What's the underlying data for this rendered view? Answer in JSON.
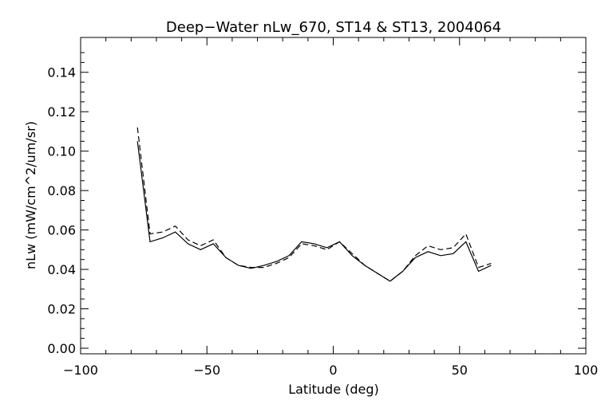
{
  "chart_data": {
    "type": "line",
    "title": "Deep−Water nLw_670, ST14 & ST13, 2004064",
    "xlabel": "Latitude (deg)",
    "ylabel": "nLw (mW/cm^2/um/sr)",
    "xlim": [
      -100,
      100
    ],
    "ylim": [
      0.0,
      0.15
    ],
    "xticks": [
      -100,
      -50,
      0,
      50,
      100
    ],
    "xtick_labels": [
      "−100",
      "−50",
      "0",
      "50",
      "100"
    ],
    "yticks": [
      0.0,
      0.02,
      0.04,
      0.06,
      0.08,
      0.1,
      0.12,
      0.14
    ],
    "ytick_labels": [
      "0.00",
      "0.02",
      "0.04",
      "0.06",
      "0.08",
      "0.10",
      "0.12",
      "0.14"
    ],
    "grid": false,
    "series": [
      {
        "style": "solid",
        "x": [
          -77.5,
          -72.5,
          -67.5,
          -62.5,
          -57.5,
          -52.5,
          -47.5,
          -42.5,
          -37.5,
          -32.5,
          -27.5,
          -22.5,
          -17.5,
          -12.5,
          -7.5,
          -2.5,
          2.5,
          7.5,
          12.5,
          17.5,
          22.5,
          27.5,
          32.5,
          37.5,
          42.5,
          47.5,
          52.5,
          57.5,
          62.5
        ],
        "y": [
          0.105,
          0.054,
          0.056,
          0.059,
          0.053,
          0.05,
          0.053,
          0.046,
          0.042,
          0.0405,
          0.042,
          0.044,
          0.047,
          0.054,
          0.053,
          0.051,
          0.054,
          0.047,
          0.042,
          0.038,
          0.034,
          0.039,
          0.046,
          0.049,
          0.047,
          0.048,
          0.054,
          0.039,
          0.042
        ]
      },
      {
        "style": "dashed",
        "x": [
          -77.5,
          -72.5,
          -67.5,
          -62.5,
          -57.5,
          -52.5,
          -47.5,
          -42.5,
          -37.5,
          -32.5,
          -27.5,
          -22.5,
          -17.5,
          -12.5,
          -7.5,
          -2.5,
          2.5,
          7.5,
          12.5,
          17.5,
          22.5,
          27.5,
          32.5,
          37.5,
          42.5,
          47.5,
          52.5,
          57.5,
          62.5
        ],
        "y": [
          0.112,
          0.058,
          0.059,
          0.062,
          0.055,
          0.052,
          0.055,
          0.046,
          0.042,
          0.041,
          0.041,
          0.043,
          0.046,
          0.053,
          0.052,
          0.05,
          0.054,
          0.048,
          0.042,
          0.038,
          0.034,
          0.039,
          0.047,
          0.052,
          0.05,
          0.051,
          0.058,
          0.041,
          0.043
        ]
      }
    ]
  }
}
